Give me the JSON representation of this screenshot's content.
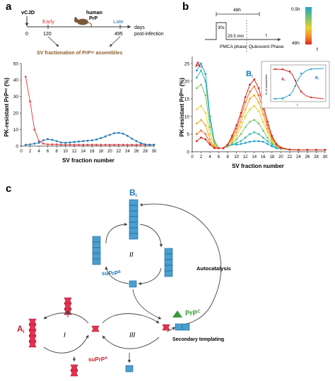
{
  "panels": {
    "a": {
      "letter": "a",
      "timeline": {
        "origin": "vCJD",
        "early": "Early",
        "late": "Late",
        "tick_early": "120",
        "tick_zero": "0",
        "tick_late": "495",
        "days": "days",
        "post": "post-infection",
        "mouse1": "human",
        "mouse2": "PrP",
        "caption": "SV fractionation of PrPˢᶜ assemblies"
      },
      "ylabel": "PK-resistant PrPˢᶜ (%)",
      "xlabel": "SV fraction number",
      "yticks": [
        "0",
        "10",
        "20",
        "30",
        "40",
        "50"
      ],
      "xticks": [
        "0",
        "2",
        "4",
        "6",
        "8",
        "10",
        "12",
        "14",
        "16",
        "18",
        "20",
        "22",
        "24",
        "26",
        "28",
        "30"
      ]
    },
    "b": {
      "letter": "b",
      "legend": {
        "total": "48h",
        "pmca_sub": "30s",
        "pmca_rest": "29.5 min",
        "pmca": "PMCA phase",
        "quiescent": "Quiescent Phase",
        "t": "t",
        "scale_top": "0.5h",
        "scale_bottom": "48h",
        "scale_t": "t"
      },
      "label_A": "A",
      "label_A_sub": "i",
      "label_B": "B",
      "label_B_sub": "i",
      "ylabel": "PK-resistant PrPˢᶜ (%)",
      "xlabel": "SV fraction number",
      "yticks": [
        "0",
        "5",
        "10",
        "15",
        "20",
        "25"
      ],
      "xticks": [
        "0",
        "2",
        "4",
        "6",
        "8",
        "10",
        "12",
        "14",
        "16",
        "18",
        "20",
        "22",
        "24",
        "26",
        "28",
        "30"
      ],
      "inset": {
        "ylabel": "% of assemblies",
        "A": "A",
        "A_sub": "i",
        "B": "B",
        "B_sub": "i",
        "xlabel": "t"
      }
    },
    "c": {
      "letter": "c",
      "B": "B",
      "B_sub": "i",
      "A": "A",
      "A_sub": "i",
      "suPrPB": "suPrP",
      "suPrPB_sup": "B",
      "suPrPA": "suPrP",
      "suPrPA_sup": "A",
      "PrPC": "PrP",
      "PrPC_sup": "C",
      "I": "I",
      "II": "II",
      "III": "III",
      "autocatalysis": "Autocatalysis",
      "secondary": "Secondary templating"
    }
  },
  "chart_data": [
    {
      "type": "line",
      "panel": "a",
      "xlabel": "SV fraction number",
      "ylabel": "PK-resistant PrPSc (%)",
      "xlim": [
        0,
        30
      ],
      "ylim": [
        0,
        50
      ],
      "series": [
        {
          "color": "#e8474a",
          "x": [
            1,
            2,
            3,
            4,
            5,
            6,
            7,
            8,
            9,
            10,
            11,
            12,
            13,
            14,
            15,
            16,
            17,
            18,
            19,
            20,
            21,
            22,
            23,
            24,
            25,
            26,
            27,
            28,
            29,
            30
          ],
          "y": [
            42,
            27,
            10,
            3,
            1.5,
            1,
            1,
            1,
            0.8,
            0.8,
            0.8,
            0.8,
            0.8,
            0.8,
            0.8,
            0.8,
            0.8,
            0.8,
            0.8,
            0.8,
            0.8,
            0.8,
            0.8,
            0.8,
            0.8,
            0.8,
            0.8,
            0.8,
            0.8,
            0.8
          ]
        },
        {
          "color": "#1f78b4",
          "x": [
            1,
            2,
            3,
            4,
            5,
            6,
            7,
            8,
            9,
            10,
            11,
            12,
            13,
            14,
            15,
            16,
            17,
            18,
            19,
            20,
            21,
            22,
            23,
            24,
            25,
            26,
            27,
            28,
            29,
            30
          ],
          "y": [
            0.8,
            1,
            1.5,
            2,
            3.5,
            4.2,
            3.8,
            3,
            2.2,
            2,
            2.2,
            2.5,
            2.7,
            3,
            3.2,
            3.5,
            4,
            4.8,
            5.8,
            6.8,
            7.8,
            8,
            7.5,
            6.2,
            4.5,
            3,
            1.8,
            1,
            0.8,
            0.8
          ]
        }
      ]
    },
    {
      "type": "line",
      "panel": "b",
      "xlabel": "SV fraction number",
      "ylabel": "PK-resistant PrPSc (%)",
      "xlim": [
        0,
        30
      ],
      "ylim": [
        0,
        27
      ],
      "series": [
        {
          "color": "#1f9fc8",
          "x": [
            1,
            2,
            3,
            4,
            5,
            6,
            7,
            8,
            9,
            10,
            11,
            12,
            13,
            14,
            15,
            16,
            17,
            18,
            19,
            20,
            22,
            24,
            26,
            28,
            30
          ],
          "y": [
            23,
            25,
            22,
            10,
            3,
            1,
            1,
            1.5,
            2,
            2,
            2.2,
            2.5,
            2.8,
            3,
            3,
            2.8,
            2.2,
            1.5,
            1,
            0.8,
            0.6,
            0.5,
            0.5,
            0.5,
            0.5
          ]
        },
        {
          "color": "#39b8a8",
          "x": [
            1,
            2,
            3,
            4,
            5,
            6,
            7,
            8,
            9,
            10,
            11,
            12,
            13,
            14,
            15,
            16,
            17,
            18,
            19,
            20,
            22,
            24,
            26,
            28,
            30
          ],
          "y": [
            21,
            23,
            20,
            9,
            3,
            1,
            1,
            1.5,
            2,
            2.5,
            3,
            4,
            5,
            5.5,
            5,
            4,
            3,
            2,
            1.2,
            0.8,
            0.6,
            0.5,
            0.5,
            0.5,
            0.5
          ]
        },
        {
          "color": "#7dc36b",
          "x": [
            1,
            2,
            3,
            4,
            5,
            6,
            7,
            8,
            9,
            10,
            11,
            12,
            13,
            14,
            15,
            16,
            17,
            18,
            19,
            20,
            22,
            24,
            26,
            28,
            30
          ],
          "y": [
            18,
            19,
            16,
            7,
            2.5,
            1,
            1,
            1.5,
            2.5,
            3.5,
            5,
            7,
            8.5,
            9,
            8,
            6,
            4,
            2.5,
            1.5,
            0.8,
            0.6,
            0.5,
            0.5,
            0.5,
            0.5
          ]
        },
        {
          "color": "#e6d232",
          "x": [
            1,
            2,
            3,
            4,
            5,
            6,
            7,
            8,
            9,
            10,
            11,
            12,
            13,
            14,
            15,
            16,
            17,
            18,
            19,
            20,
            22,
            24,
            26,
            28,
            30
          ],
          "y": [
            12,
            13,
            11,
            5,
            2,
            1,
            1,
            2,
            3,
            4.5,
            7,
            10,
            12,
            13,
            11.5,
            8.5,
            5.5,
            3,
            1.8,
            1,
            0.6,
            0.5,
            0.5,
            0.5,
            0.5
          ]
        },
        {
          "color": "#f5a623",
          "x": [
            1,
            2,
            3,
            4,
            5,
            6,
            7,
            8,
            9,
            10,
            11,
            12,
            13,
            14,
            15,
            16,
            17,
            18,
            19,
            20,
            22,
            24,
            26,
            28,
            30
          ],
          "y": [
            8,
            9,
            7.5,
            3.5,
            1.5,
            1,
            1,
            2,
            3.5,
            5.5,
            8.5,
            12,
            15,
            16,
            14,
            10.5,
            6.5,
            3.5,
            2,
            1,
            0.6,
            0.5,
            0.5,
            0.5,
            0.5
          ]
        },
        {
          "color": "#ee6b2b",
          "x": [
            1,
            2,
            3,
            4,
            5,
            6,
            7,
            8,
            9,
            10,
            11,
            12,
            13,
            14,
            15,
            16,
            17,
            18,
            19,
            20,
            22,
            24,
            26,
            28,
            30
          ],
          "y": [
            5,
            6,
            5,
            2.5,
            1.2,
            1,
            1,
            2,
            4,
            6.5,
            10,
            14,
            17,
            18.5,
            16,
            12,
            7.5,
            4,
            2,
            1,
            0.6,
            0.5,
            0.5,
            0.5,
            0.5
          ]
        },
        {
          "color": "#d7261e",
          "x": [
            1,
            2,
            3,
            4,
            5,
            6,
            7,
            8,
            9,
            10,
            11,
            12,
            13,
            14,
            15,
            16,
            17,
            18,
            19,
            20,
            22,
            24,
            26,
            28,
            30
          ],
          "y": [
            3,
            4,
            3.5,
            2,
            1,
            1,
            1,
            2,
            4.5,
            7.5,
            11,
            15.5,
            19,
            20.5,
            18,
            13.5,
            8.5,
            4.5,
            2.2,
            1.2,
            0.6,
            0.5,
            0.5,
            0.5,
            0.5
          ]
        }
      ]
    }
  ]
}
